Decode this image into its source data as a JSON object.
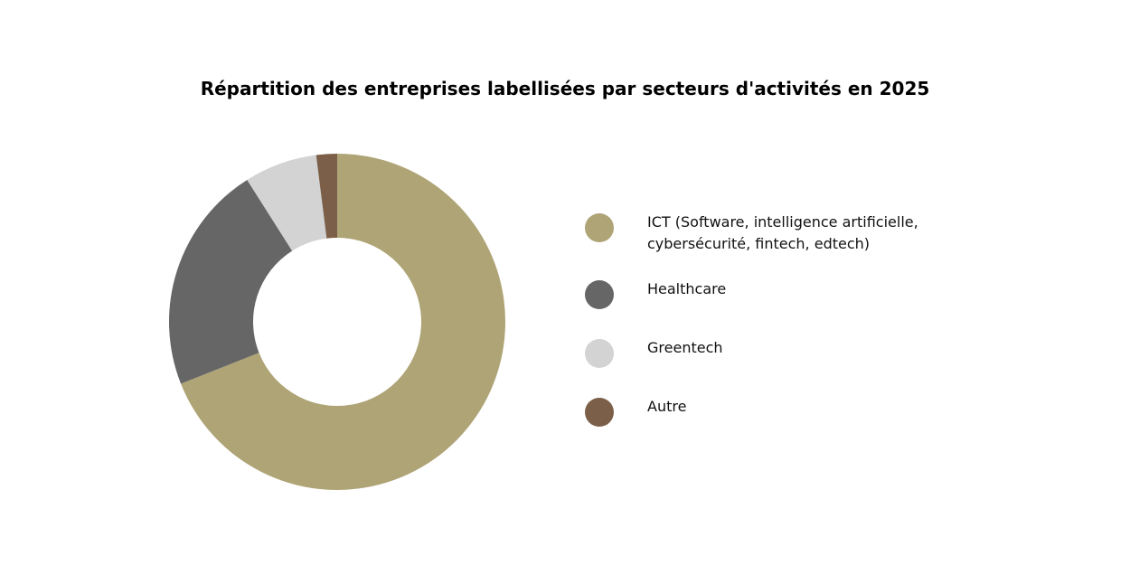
{
  "chart_data": {
    "type": "pie",
    "variant": "donut",
    "title": "Répartition des entreprises labellisées par secteurs d'activités en 2025",
    "categories": [
      "ICT (Software, intelligence artificielle, cybersécurité, fintech, edtech)",
      "Healthcare",
      "Greentech",
      "Autre"
    ],
    "values": [
      69,
      22,
      7,
      2
    ],
    "unit": "%",
    "colors": [
      "#afa476",
      "#666666",
      "#d3d3d3",
      "#7b5f48"
    ],
    "legend_position": "right",
    "start": "top, clockwise"
  }
}
